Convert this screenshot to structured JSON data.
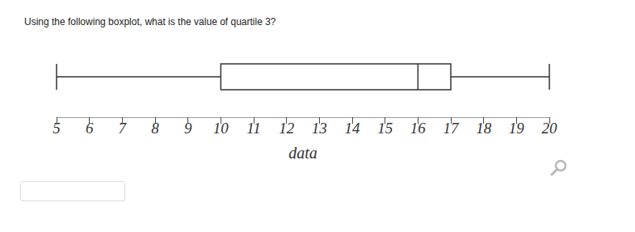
{
  "chart_data": {
    "type": "boxplot",
    "title": "Using the following boxplot, what is the value of quartile 3?",
    "xlabel": "data",
    "orientation": "horizontal",
    "values": {
      "min": 5,
      "q1": 10,
      "median": 16,
      "q3": 17,
      "max": 20
    },
    "xlim": [
      5,
      20
    ],
    "xticks": [
      5,
      6,
      7,
      8,
      9,
      10,
      11,
      12,
      13,
      14,
      15,
      16,
      17,
      18,
      19,
      20
    ],
    "grid": false,
    "color": "#333333"
  }
}
